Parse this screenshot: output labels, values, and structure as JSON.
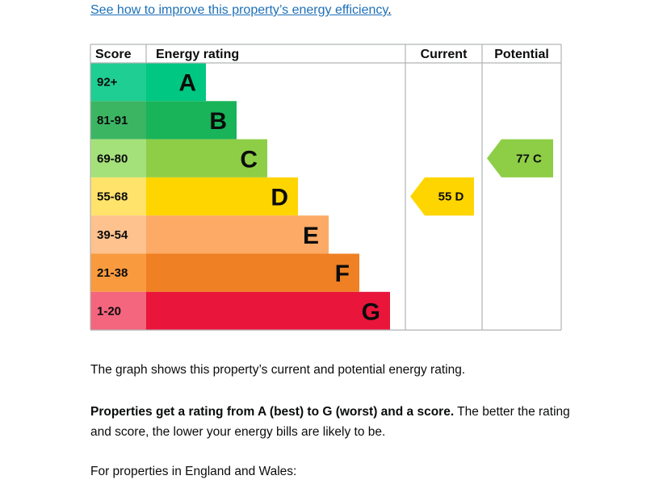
{
  "improve_link": {
    "text": "See how to improve this property’s energy efficiency",
    "trail": "."
  },
  "chart_data": {
    "type": "bar",
    "headers": {
      "score": "Score",
      "rating": "Energy rating",
      "current": "Current",
      "potential": "Potential"
    },
    "bands": [
      {
        "letter": "A",
        "range": "92+",
        "color": "#008054",
        "score_color": "#19b459"
      },
      {
        "letter": "B",
        "range": "81-91",
        "color": "#19b459",
        "score_color": "#19b459"
      },
      {
        "letter": "C",
        "range": "69-80",
        "color": "#8dce46",
        "score_color": "#8dce46"
      },
      {
        "letter": "D",
        "range": "55-68",
        "color": "#ffd500",
        "score_color": "#ffd500"
      },
      {
        "letter": "E",
        "range": "39-54",
        "color": "#fcaa65",
        "score_color": "#fcaa65"
      },
      {
        "letter": "F",
        "range": "21-38",
        "color": "#ef8023",
        "score_color": "#ef8023"
      },
      {
        "letter": "G",
        "range": "1-20",
        "color": "#e9153b",
        "score_color": "#e9153b"
      }
    ],
    "band_colors": {
      "A": [
        "#1fce92",
        "#00c781"
      ],
      "B": [
        "#3cb563",
        "#19b459"
      ],
      "C": [
        "#a5e17a",
        "#8dce46"
      ],
      "D": [
        "#ffe36b",
        "#ffd500"
      ],
      "E": [
        "#fdc28e",
        "#fcaa65"
      ],
      "F": [
        "#f99a3f",
        "#ef8023"
      ],
      "G": [
        "#f4657e",
        "#e9153b"
      ]
    },
    "current": {
      "value": 55,
      "band": "D",
      "label": "55 D",
      "color": "#ffd500"
    },
    "potential": {
      "value": 77,
      "band": "C",
      "label": "77 C",
      "color": "#8dce46"
    }
  },
  "text": {
    "p1": "The graph shows this property’s current and potential energy rating.",
    "p2_bold": "Properties get a rating from A (best) to G (worst) and a score.",
    "p2_rest": " The better the rating and score, the lower your energy bills are likely to be.",
    "p3": "For properties in England and Wales:"
  }
}
